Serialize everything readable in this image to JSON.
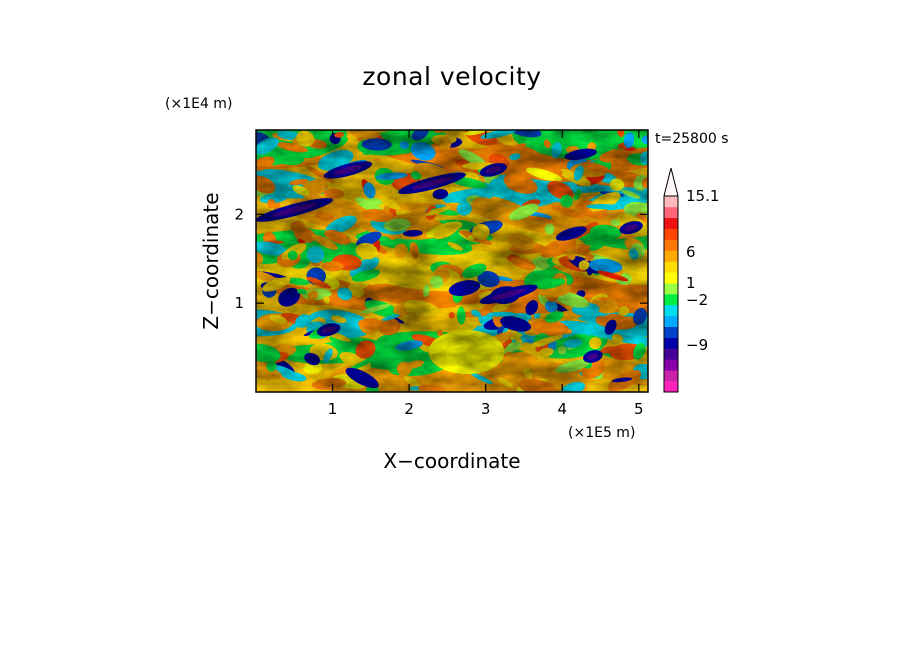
{
  "chart_data": {
    "type": "heatmap",
    "title": "zonal velocity",
    "xlabel": "X−coordinate",
    "ylabel": "Z−coordinate",
    "x_unit": "(×1E5 m)",
    "y_unit": "(×1E4 m)",
    "time_label": "t=25800 s",
    "xlim": [
      0,
      5.12
    ],
    "ylim": [
      0,
      2.95
    ],
    "x_ticks": [
      "1",
      "2",
      "3",
      "4",
      "5"
    ],
    "y_ticks": [
      "1",
      "2"
    ],
    "colorbar": {
      "extend": "max",
      "labels": [
        "15.1",
        "6",
        "1",
        "−2",
        "−9"
      ],
      "colors": [
        "#ff22bb",
        "#cc22aa",
        "#8800aa",
        "#440099",
        "#0000aa",
        "#0044cc",
        "#00aaff",
        "#00ddee",
        "#00ee44",
        "#99ff44",
        "#ffff00",
        "#ffdd00",
        "#ffaa00",
        "#ff7700",
        "#ff4400",
        "#ee1111",
        "#ff6677",
        "#ffbbbb"
      ]
    }
  }
}
